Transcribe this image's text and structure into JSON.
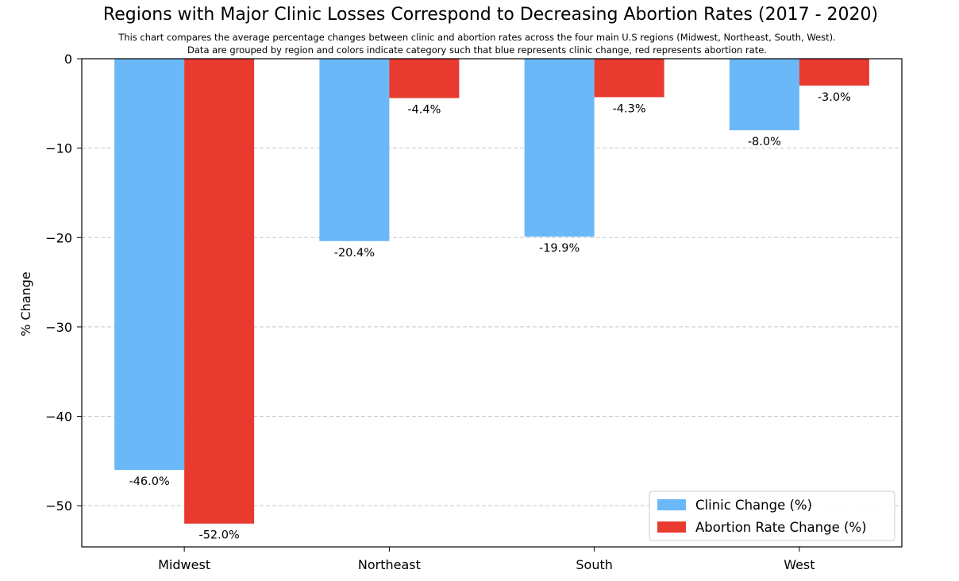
{
  "chart_data": {
    "type": "bar",
    "title": "Regions with Major Clinic Losses Correspond to Decreasing Abortion Rates (2017 - 2020)",
    "subtitle_lines": [
      "This chart compares the average percentage changes between clinic and abortion rates across the four main U.S regions (Midwest, Northeast, South, West).",
      "Data are grouped by region and colors indicate category such that blue represents clinic change, red represents abortion rate."
    ],
    "xlabel": "",
    "ylabel": "% Change",
    "categories": [
      "Midwest",
      "Northeast",
      "South",
      "West"
    ],
    "series": [
      {
        "name": "Clinic Change (%)",
        "color": "#6bb8f8",
        "values": [
          -46.0,
          -20.4,
          -19.9,
          -8.0
        ],
        "labels": [
          "-46.0%",
          "-20.4%",
          "-19.9%",
          "-8.0%"
        ]
      },
      {
        "name": "Abortion Rate Change (%)",
        "color": "#e83a2f",
        "values": [
          -52.0,
          -4.4,
          -4.3,
          -3.0
        ],
        "labels": [
          "-52.0%",
          "-4.4%",
          "-4.3%",
          "-3.0%"
        ]
      }
    ],
    "ylim": [
      -54.6,
      0
    ],
    "yticks": [
      0,
      -10,
      -20,
      -30,
      -40,
      -50
    ],
    "ytick_labels": [
      "0",
      "−10",
      "−20",
      "−30",
      "−40",
      "−50"
    ],
    "grid": "y-dashed",
    "legend_position": "bottom-right"
  }
}
